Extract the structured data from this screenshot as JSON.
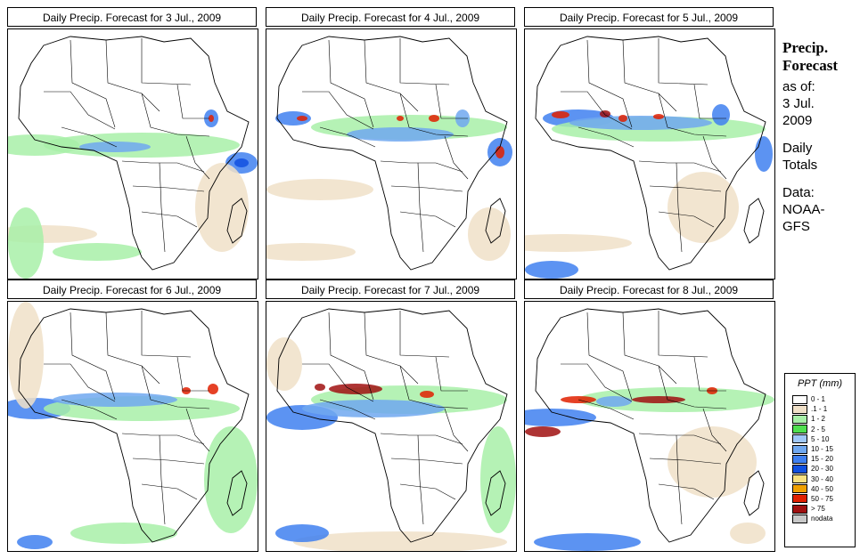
{
  "panels": [
    {
      "title": "Daily Precip. Forecast for  3 Jul., 2009"
    },
    {
      "title": "Daily Precip. Forecast for  4 Jul., 2009"
    },
    {
      "title": "Daily Precip. Forecast for  5 Jul., 2009"
    },
    {
      "title": "Daily Precip. Forecast for  6 Jul., 2009"
    },
    {
      "title": "Daily Precip. Forecast for  7 Jul., 2009"
    },
    {
      "title": "Daily Precip. Forecast for  8 Jul., 2009"
    }
  ],
  "sidebar": {
    "heading_line1": "Precip.",
    "heading_line2": "Forecast",
    "asof": "as of:",
    "date_line1": "3 Jul.",
    "date_line2": "2009",
    "daily": "Daily",
    "totals": "Totals",
    "data_label": "Data:",
    "source_line1": "NOAA-",
    "source_line2": "GFS"
  },
  "legend": {
    "title": "PPT (mm)",
    "items": [
      {
        "label": "0 - 1",
        "color": "#ffffff"
      },
      {
        "label": ".1 - 1",
        "color": "#f0e0c8"
      },
      {
        "label": "1 - 2",
        "color": "#a8f0a8"
      },
      {
        "label": "2 - 5",
        "color": "#50e050"
      },
      {
        "label": "5 - 10",
        "color": "#a0c8f8"
      },
      {
        "label": "10 - 15",
        "color": "#70a8f0"
      },
      {
        "label": "15 - 20",
        "color": "#4080f0"
      },
      {
        "label": "20 - 30",
        "color": "#1050e0"
      },
      {
        "label": "30 - 40",
        "color": "#f8e080"
      },
      {
        "label": "40 - 50",
        "color": "#f0a000"
      },
      {
        "label": "50 - 75",
        "color": "#e02000"
      },
      {
        "label": "> 75",
        "color": "#a01010"
      },
      {
        "label": "nodata",
        "color": "#c8c8c8"
      }
    ]
  }
}
